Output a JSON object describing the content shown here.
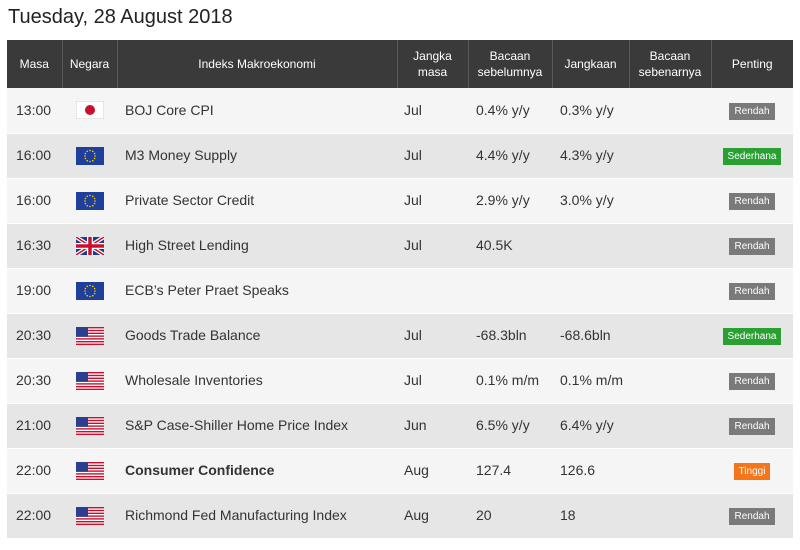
{
  "page": {
    "title": "Tuesday, 28 August 2018"
  },
  "headers": {
    "time": "Masa",
    "country": "Negara",
    "event": "Indeks Makroekonomi",
    "period_l1": "Jangka",
    "period_l2": "masa",
    "previous_l1": "Bacaan",
    "previous_l2": "sebelumnya",
    "forecast": "Jangkaan",
    "actual_l1": "Bacaan",
    "actual_l2": "sebenarnya",
    "importance": "Penting"
  },
  "colors": {
    "low": "#7a7a7a",
    "medium": "#2aa033",
    "high": "#f5761a"
  },
  "rows": [
    {
      "time": "13:00",
      "flag": "japan-flag",
      "event": "BOJ Core CPI",
      "period": "Jul",
      "previous": "0.4% y/y",
      "forecast": "0.3% y/y",
      "actual": "",
      "importance": "Rendah",
      "level": "low",
      "bold": false
    },
    {
      "time": "16:00",
      "flag": "eu-flag",
      "event": "M3 Money Supply",
      "period": "Jul",
      "previous": "4.4% y/y",
      "forecast": "4.3% y/y",
      "actual": "",
      "importance": "Sederhana",
      "level": "medium",
      "bold": false
    },
    {
      "time": "16:00",
      "flag": "eu-flag",
      "event": "Private Sector Credit",
      "period": "Jul",
      "previous": "2.9% y/y",
      "forecast": "3.0% y/y",
      "actual": "",
      "importance": "Rendah",
      "level": "low",
      "bold": false
    },
    {
      "time": "16:30",
      "flag": "uk-flag",
      "event": "High Street Lending",
      "period": "Jul",
      "previous": "40.5K",
      "forecast": "",
      "actual": "",
      "importance": "Rendah",
      "level": "low",
      "bold": false
    },
    {
      "time": "19:00",
      "flag": "eu-flag",
      "event": "ECB’s Peter Praet Speaks",
      "period": "",
      "previous": "",
      "forecast": "",
      "actual": "",
      "importance": "Rendah",
      "level": "low",
      "bold": false
    },
    {
      "time": "20:30",
      "flag": "us-flag",
      "event": "Goods Trade Balance",
      "period": "Jul",
      "previous": "-68.3bln",
      "forecast": "-68.6bln",
      "actual": "",
      "importance": "Sederhana",
      "level": "medium",
      "bold": false
    },
    {
      "time": "20:30",
      "flag": "us-flag",
      "event": "Wholesale Inventories",
      "period": "Jul",
      "previous": "0.1% m/m",
      "forecast": "0.1% m/m",
      "actual": "",
      "importance": "Rendah",
      "level": "low",
      "bold": false
    },
    {
      "time": "21:00",
      "flag": "us-flag",
      "event": "S&P Case-Shiller Home Price Index",
      "period": "Jun",
      "previous": "6.5% y/y",
      "forecast": "6.4% y/y",
      "actual": "",
      "importance": "Rendah",
      "level": "low",
      "bold": false
    },
    {
      "time": "22:00",
      "flag": "us-flag",
      "event": "Consumer Confidence",
      "period": "Aug",
      "previous": "127.4",
      "forecast": "126.6",
      "actual": "",
      "importance": "Tinggi",
      "level": "high",
      "bold": true
    },
    {
      "time": "22:00",
      "flag": "us-flag",
      "event": "Richmond Fed Manufacturing Index",
      "period": "Aug",
      "previous": "20",
      "forecast": "18",
      "actual": "",
      "importance": "Rendah",
      "level": "low",
      "bold": false
    }
  ]
}
